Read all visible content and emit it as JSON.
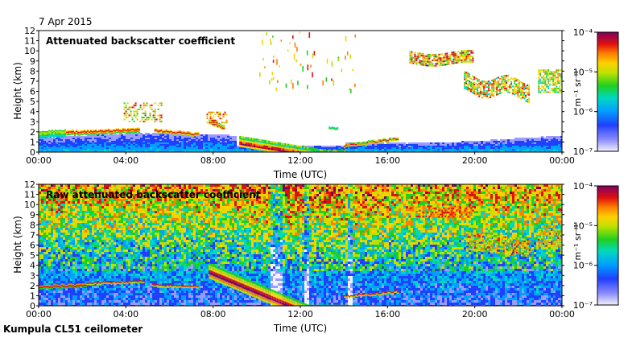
{
  "date_label": "7 Apr 2015",
  "footer": "Kumpula CL51 ceilometer",
  "chart_data": [
    {
      "type": "heatmap",
      "title": "Attenuated backscatter coefficient",
      "xlabel": "Time (UTC)",
      "ylabel": "Height (km)",
      "x_ticks": [
        "00:00",
        "04:00",
        "08:00",
        "12:00",
        "16:00",
        "20:00",
        "00:00"
      ],
      "y_ticks": [
        "0",
        "1",
        "2",
        "3",
        "4",
        "5",
        "6",
        "7",
        "8",
        "9",
        "10",
        "11",
        "12"
      ],
      "ylim": [
        0,
        12
      ],
      "xlim_hours": [
        0,
        24
      ],
      "colorbar": {
        "scale": "log",
        "range": [
          1e-07,
          0.0001
        ],
        "labels": [
          "10⁻⁷",
          "10⁻⁶",
          "10⁻⁵",
          "10⁻⁴"
        ],
        "unit": "m⁻¹ sr⁻¹"
      }
    },
    {
      "type": "heatmap",
      "title": "Raw attenuated backscatter coefficient",
      "xlabel": "Time (UTC)",
      "ylabel": "Height (km)",
      "x_ticks": [
        "00:00",
        "04:00",
        "08:00",
        "12:00",
        "16:00",
        "20:00",
        "00:00"
      ],
      "y_ticks": [
        "0",
        "1",
        "2",
        "3",
        "4",
        "5",
        "6",
        "7",
        "8",
        "9",
        "10",
        "11",
        "12"
      ],
      "ylim": [
        0,
        12
      ],
      "xlim_hours": [
        0,
        24
      ],
      "colorbar": {
        "scale": "log",
        "range": [
          1e-07,
          0.0001
        ],
        "labels": [
          "10⁻⁷",
          "10⁻⁶",
          "10⁻⁵",
          "10⁻⁴"
        ],
        "unit": "m⁻¹ sr⁻¹"
      }
    }
  ]
}
